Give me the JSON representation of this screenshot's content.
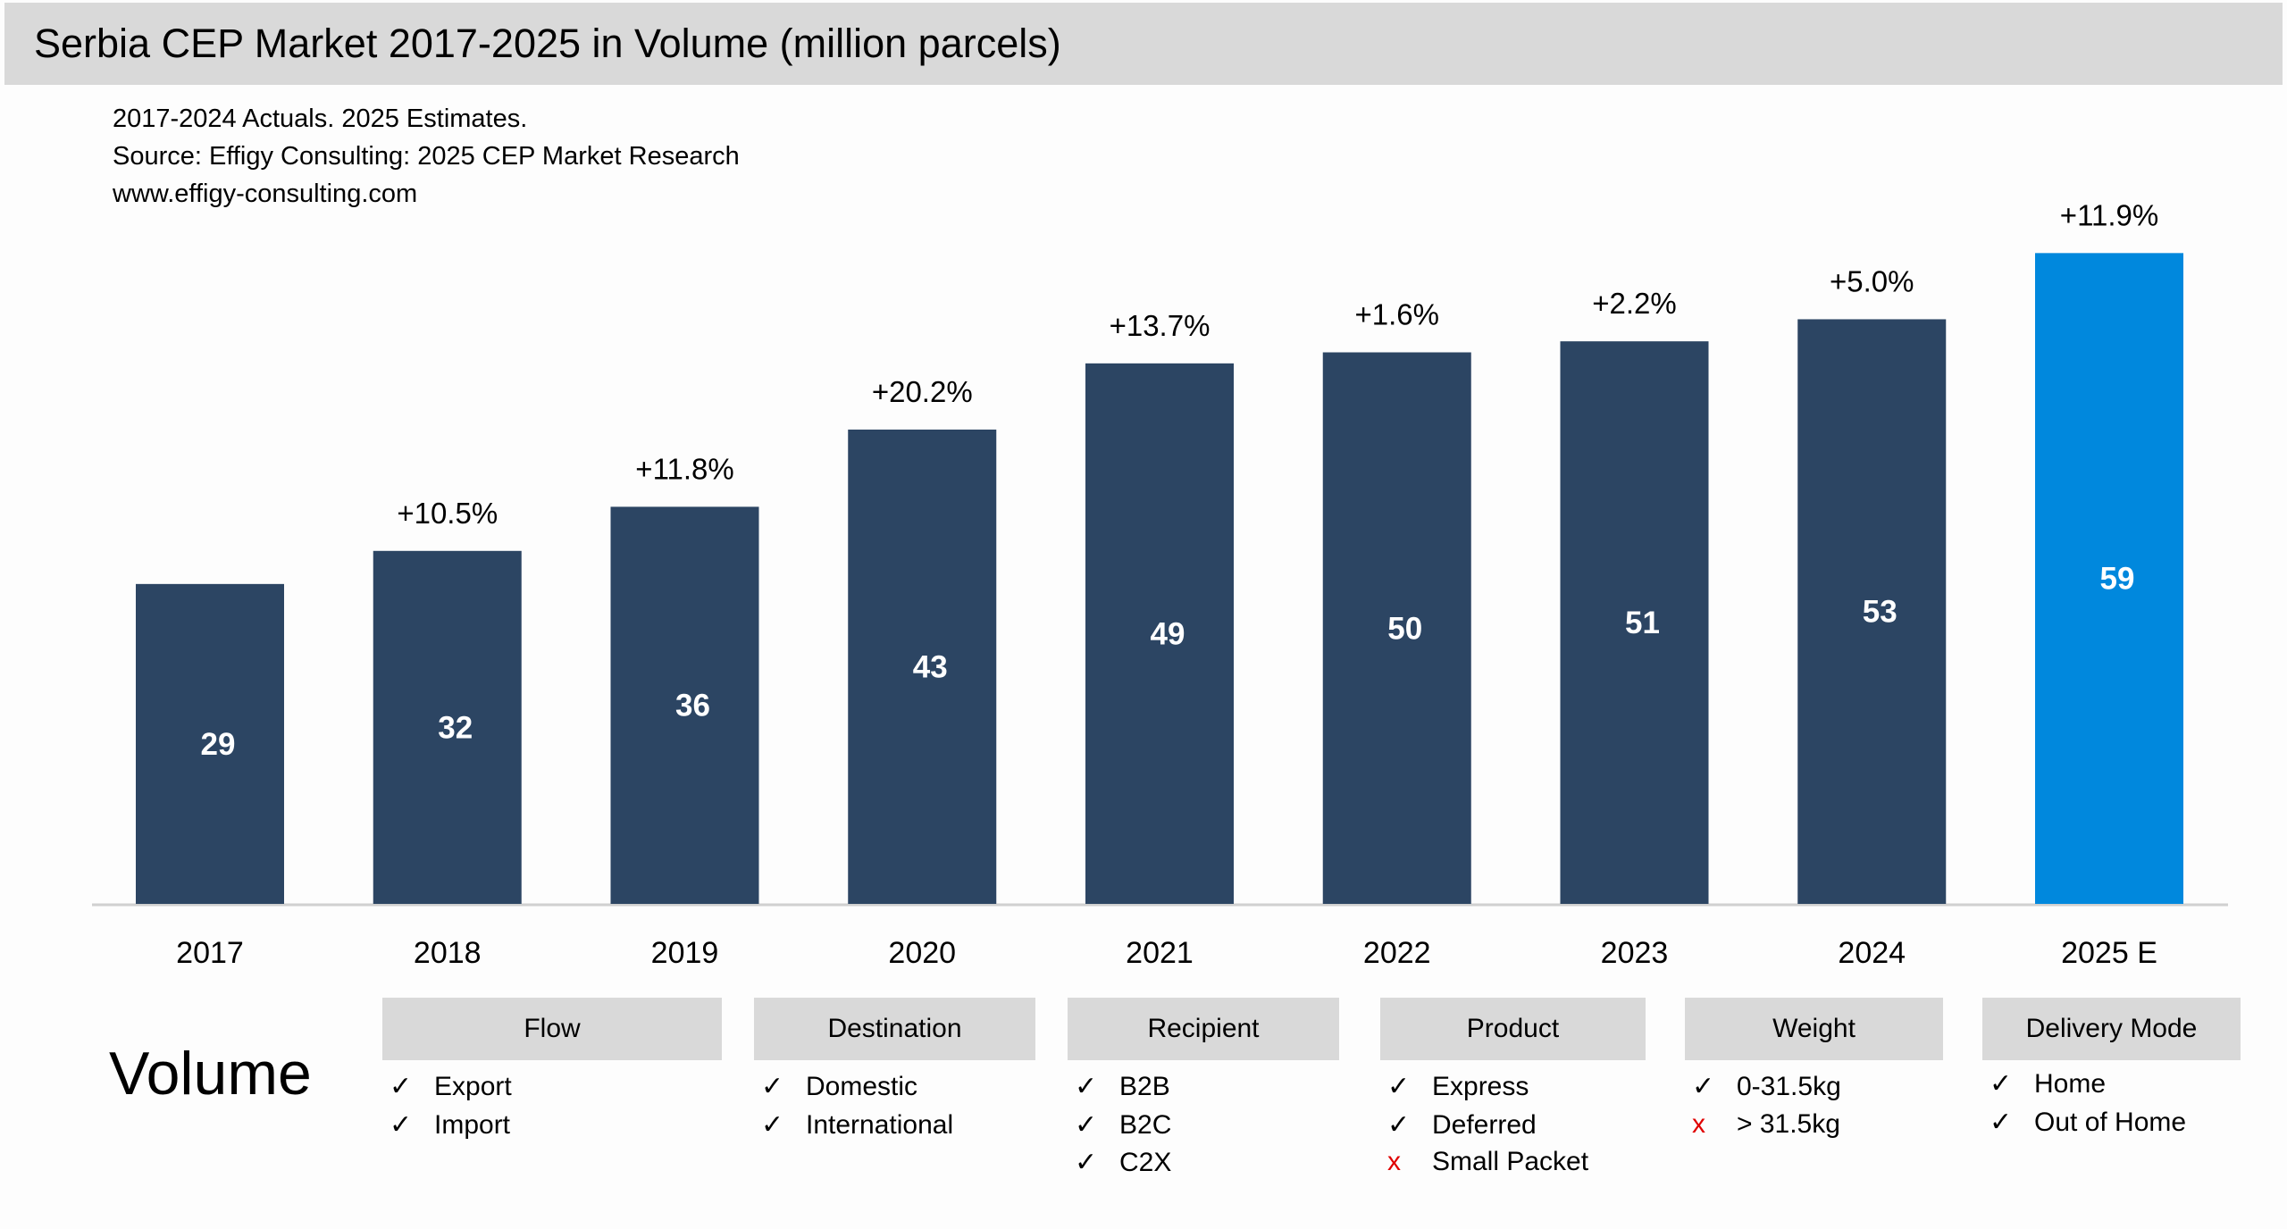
{
  "header": {
    "title": "Serbia CEP Market 2017-2025 in Volume (million parcels)",
    "notes": [
      "2017-2024 Actuals. 2025 Estimates.",
      "Source: Effigy Consulting: 2025 CEP Market Research",
      "www.effigy-consulting.com"
    ]
  },
  "chart_data": {
    "type": "bar",
    "categories": [
      "2017",
      "2018",
      "2019",
      "2020",
      "2021",
      "2022",
      "2023",
      "2024",
      "2025 E"
    ],
    "values": [
      29,
      32,
      36,
      43,
      49,
      50,
      51,
      53,
      59
    ],
    "value_labels": [
      "29",
      "32",
      "36",
      "43",
      "49",
      "50",
      "51",
      "53",
      "59"
    ],
    "growth_labels": [
      "",
      "+10.5%",
      "+11.8%",
      "+20.2%",
      "+13.7%",
      "+1.6%",
      "+2.2%",
      "+5.0%",
      "+11.9%"
    ],
    "bar_colors": [
      "#2c4563",
      "#2c4563",
      "#2c4563",
      "#2c4563",
      "#2c4563",
      "#2c4563",
      "#2c4563",
      "#2c4563",
      "#0088dd"
    ],
    "ylim": [
      0,
      60
    ],
    "grid": false,
    "y_axis_visible": false
  },
  "scope": {
    "label": "Volume",
    "check_icon": "check-icon",
    "exclude_icon": "x-icon",
    "categories": [
      {
        "header": "Flow",
        "items": [
          {
            "text": "Export",
            "included": true,
            "mark": "✓"
          },
          {
            "text": "Import",
            "included": true,
            "mark": "✓"
          }
        ]
      },
      {
        "header": "Destination",
        "items": [
          {
            "text": "Domestic",
            "included": true,
            "mark": "✓"
          },
          {
            "text": "International",
            "included": true,
            "mark": "✓"
          }
        ]
      },
      {
        "header": "Recipient",
        "items": [
          {
            "text": "B2B",
            "included": true,
            "mark": "✓"
          },
          {
            "text": "B2C",
            "included": true,
            "mark": "✓"
          },
          {
            "text": "C2X",
            "included": true,
            "mark": "✓"
          }
        ]
      },
      {
        "header": "Product",
        "items": [
          {
            "text": "Express",
            "included": true,
            "mark": "✓"
          },
          {
            "text": "Deferred",
            "included": true,
            "mark": "✓"
          },
          {
            "text": "Small Packet",
            "included": false,
            "mark": "x"
          }
        ]
      },
      {
        "header": "Weight",
        "items": [
          {
            "text": "0-31.5kg",
            "included": true,
            "mark": "✓"
          },
          {
            "text": "> 31.5kg",
            "included": false,
            "mark": "x"
          }
        ]
      },
      {
        "header": "Delivery Mode",
        "items": [
          {
            "text": "Home",
            "included": true,
            "mark": "✓"
          },
          {
            "text": "Out of Home",
            "included": true,
            "mark": "✓"
          }
        ]
      }
    ]
  }
}
